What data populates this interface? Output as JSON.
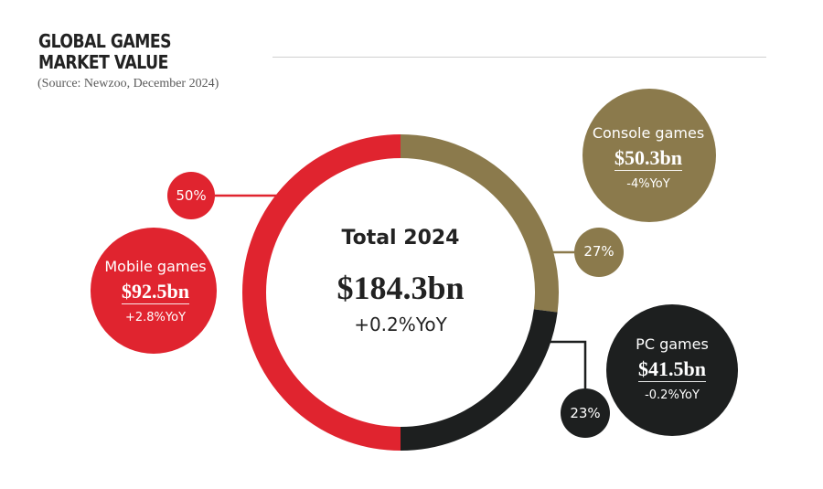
{
  "header": {
    "title_line1": "GLOBAL GAMES",
    "title_line2": "MARKET VALUE",
    "source": "(Source: Newzoo, December 2024)"
  },
  "center": {
    "label": "Total 2024",
    "value": "$184.3bn",
    "yoy": "+0.2%YoY"
  },
  "colors": {
    "mobile": "#e0242f",
    "console": "#8b7a4c",
    "pc": "#1d1f1f"
  },
  "chart_data": {
    "type": "pie",
    "title": "GLOBAL GAMES MARKET VALUE",
    "subtitle": "(Source: Newzoo, December 2024)",
    "total": 184.3,
    "categories": [
      "Mobile games",
      "Console games",
      "PC games"
    ],
    "values": [
      92.5,
      50.3,
      41.5
    ],
    "shares": [
      50,
      27,
      23
    ],
    "segments": [
      {
        "key": "mobile",
        "name": "Mobile games",
        "value": "$92.5bn",
        "yoy": "+2.8%YoY",
        "pct": "50%",
        "share": 50
      },
      {
        "key": "console",
        "name": "Console games",
        "value": "$50.3bn",
        "yoy": "-4%YoY",
        "pct": "27%",
        "share": 27
      },
      {
        "key": "pc",
        "name": "PC games",
        "value": "$41.5bn",
        "yoy": "-0.2%YoY",
        "pct": "23%",
        "share": 23
      }
    ]
  }
}
